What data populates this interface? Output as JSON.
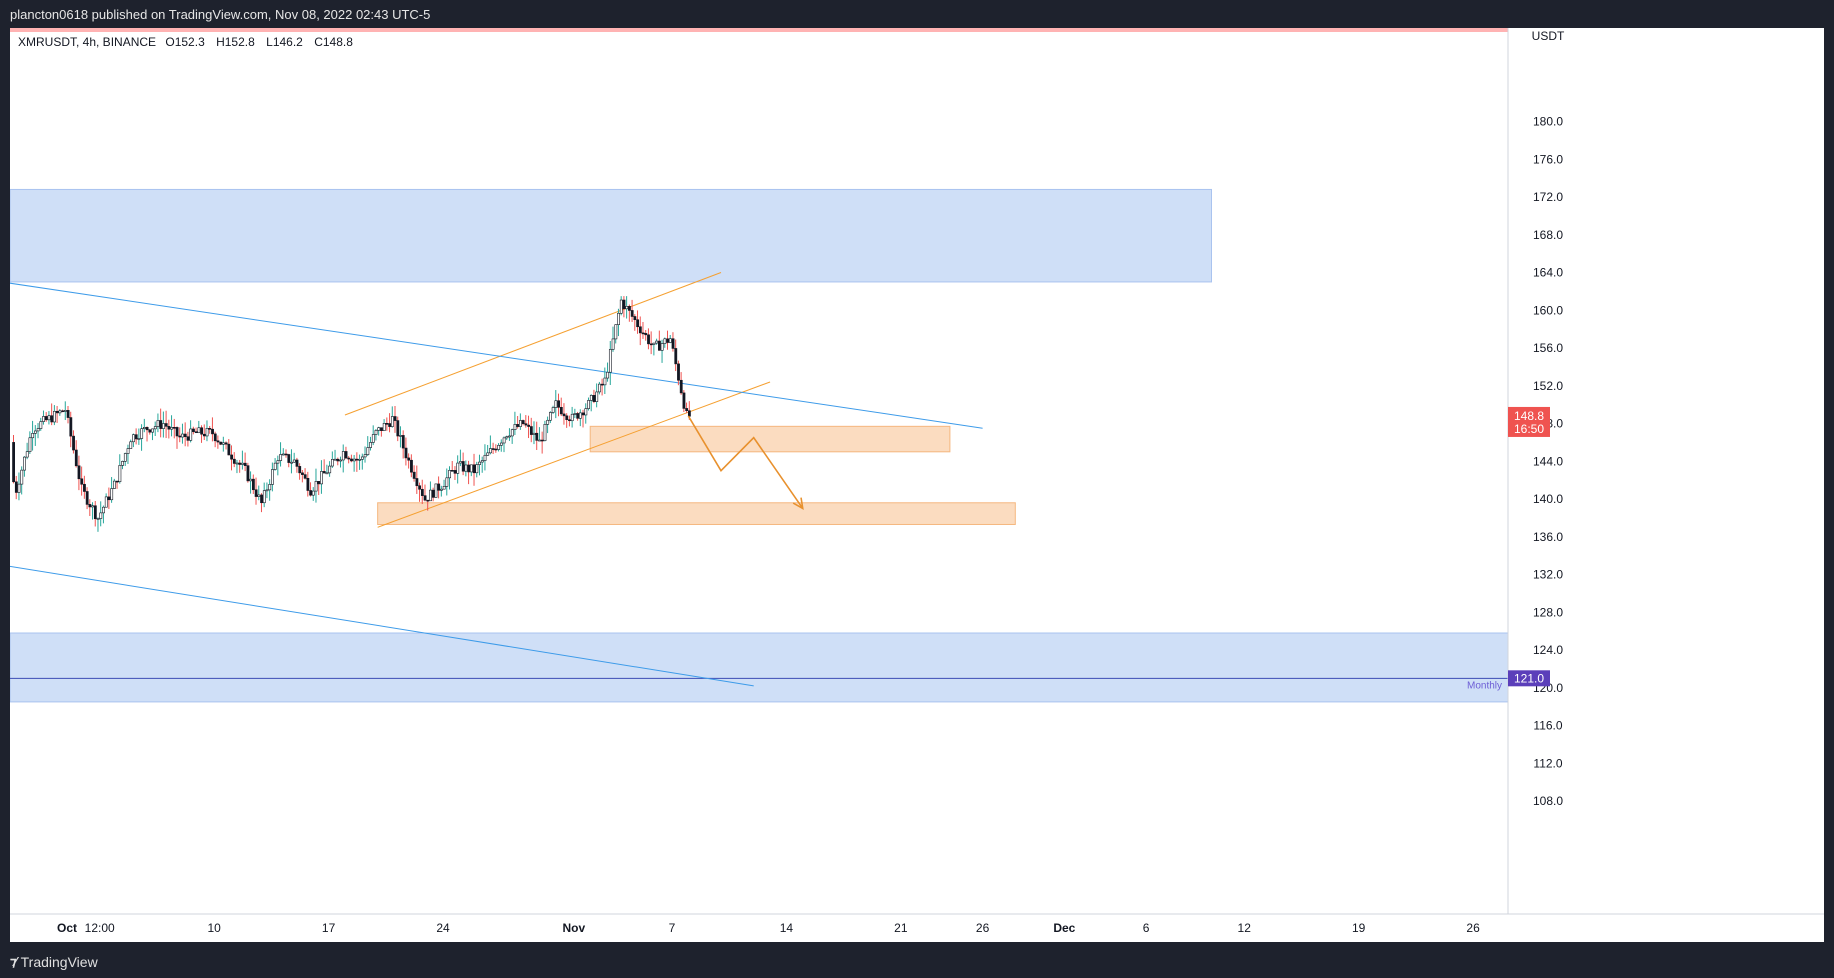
{
  "header": {
    "published_text": "plancton0618 published on TradingView.com, Nov 08, 2022 02:43 UTC-5"
  },
  "symbol": {
    "name": "XMRUSDT, 4h, BINANCE",
    "open": "O152.3",
    "high": "H152.8",
    "low": "L146.2",
    "close": "C148.8"
  },
  "footer": {
    "brand": "TradingView",
    "logo_icon": "tradingview-logo-icon"
  },
  "colors": {
    "up": "#26a69a",
    "down": "#ef5350",
    "candle_body": "#131722",
    "zone_blue": "#cfdff7",
    "zone_blue_border": "#a9c3ef",
    "zone_orange": "#fbdcc0",
    "zone_orange_border": "#f5b77f",
    "channel": "#f5a031",
    "trend_blue": "#3d9be9",
    "path": "#e8912e",
    "price_badge": "#ef5350",
    "level_badge": "#5b3fba",
    "level_line": "#3c4bb5",
    "top_strip": "#ffb3b3"
  },
  "chart_data": {
    "type": "candlestick",
    "symbol": "XMRUSDT",
    "interval": "4h",
    "exchange": "BINANCE",
    "y_axis": {
      "currency": "USDT",
      "ticks": [
        "108.0",
        "112.0",
        "116.0",
        "120.0",
        "124.0",
        "128.0",
        "132.0",
        "136.0",
        "140.0",
        "144.0",
        "148.0",
        "152.0",
        "156.0",
        "160.0",
        "164.0",
        "168.0",
        "172.0",
        "176.0",
        "180.0"
      ],
      "range": [
        104.0,
        183.5
      ]
    },
    "x_axis": {
      "ticks": [
        {
          "label": "Oct",
          "date": "2022-10-01",
          "bold": true
        },
        {
          "label": "12:00",
          "date": "2022-10-03",
          "bold": false
        },
        {
          "label": "10",
          "date": "2022-10-10",
          "bold": false
        },
        {
          "label": "17",
          "date": "2022-10-17",
          "bold": false
        },
        {
          "label": "24",
          "date": "2022-10-24",
          "bold": false
        },
        {
          "label": "Nov",
          "date": "2022-11-01",
          "bold": true
        },
        {
          "label": "7",
          "date": "2022-11-07",
          "bold": false
        },
        {
          "label": "14",
          "date": "2022-11-14",
          "bold": false
        },
        {
          "label": "21",
          "date": "2022-11-21",
          "bold": false
        },
        {
          "label": "26",
          "date": "2022-11-26",
          "bold": false
        },
        {
          "label": "Dec",
          "date": "2022-12-01",
          "bold": true
        },
        {
          "label": "6",
          "date": "2022-12-06",
          "bold": false
        },
        {
          "label": "12",
          "date": "2022-12-12",
          "bold": false
        },
        {
          "label": "19",
          "date": "2022-12-19",
          "bold": false
        },
        {
          "label": "26",
          "date": "2022-12-26",
          "bold": false
        }
      ]
    },
    "price_path": [
      [
        "2022-09-27",
        146.0
      ],
      [
        "2022-09-28",
        141.0
      ],
      [
        "2022-09-29",
        147.5
      ],
      [
        "2022-09-30",
        148.5
      ],
      [
        "2022-10-01",
        149.5
      ],
      [
        "2022-10-02",
        141.0
      ],
      [
        "2022-10-03",
        138.0
      ],
      [
        "2022-10-04",
        141.5
      ],
      [
        "2022-10-05",
        146.5
      ],
      [
        "2022-10-06",
        147.5
      ],
      [
        "2022-10-07",
        148.0
      ],
      [
        "2022-10-08",
        146.5
      ],
      [
        "2022-10-09",
        147.0
      ],
      [
        "2022-10-10",
        147.0
      ],
      [
        "2022-10-11",
        145.0
      ],
      [
        "2022-10-12",
        143.0
      ],
      [
        "2022-10-13",
        139.5
      ],
      [
        "2022-10-14",
        144.5
      ],
      [
        "2022-10-15",
        144.0
      ],
      [
        "2022-10-16",
        141.0
      ],
      [
        "2022-10-17",
        143.0
      ],
      [
        "2022-10-18",
        145.0
      ],
      [
        "2022-10-19",
        144.0
      ],
      [
        "2022-10-20",
        147.0
      ],
      [
        "2022-10-21",
        148.5
      ],
      [
        "2022-10-22",
        144.0
      ],
      [
        "2022-10-23",
        140.0
      ],
      [
        "2022-10-24",
        141.5
      ],
      [
        "2022-10-25",
        143.5
      ],
      [
        "2022-10-26",
        143.0
      ],
      [
        "2022-10-27",
        145.0
      ],
      [
        "2022-10-28",
        147.0
      ],
      [
        "2022-10-29",
        148.0
      ],
      [
        "2022-10-30",
        146.0
      ],
      [
        "2022-10-31",
        150.0
      ],
      [
        "2022-11-01",
        148.5
      ],
      [
        "2022-11-02",
        150.0
      ],
      [
        "2022-11-03",
        152.5
      ],
      [
        "2022-11-04",
        161.0
      ],
      [
        "2022-11-05",
        158.5
      ],
      [
        "2022-11-06",
        156.0
      ],
      [
        "2022-11-07",
        157.0
      ],
      [
        "2022-11-08",
        148.8
      ]
    ],
    "last_price": {
      "value": "148.8",
      "countdown": "16:50"
    },
    "drawings": {
      "zones": [
        {
          "name": "resistance-zone-blue",
          "from": "2022-09-27",
          "to": "2022-12-10",
          "low": 163.0,
          "high": 172.8,
          "color": "blue"
        },
        {
          "name": "monthly-zone-blue",
          "from": "2022-09-27",
          "to": "2023-01-05",
          "low": 118.5,
          "high": 125.8,
          "color": "blue"
        },
        {
          "name": "support-zone-orange-upper",
          "from": "2022-11-02",
          "to": "2022-11-24",
          "low": 145.0,
          "high": 147.7,
          "color": "orange"
        },
        {
          "name": "support-zone-orange-lower",
          "from": "2022-10-20",
          "to": "2022-11-28",
          "low": 137.3,
          "high": 139.6,
          "color": "orange"
        }
      ],
      "lines": [
        {
          "name": "channel-upper-line",
          "x1": "2022-10-18",
          "y1": 148.9,
          "x2": "2022-11-10",
          "y2": 164.0,
          "color": "orange"
        },
        {
          "name": "channel-lower-line",
          "x1": "2022-10-20",
          "y1": 137.0,
          "x2": "2022-11-13",
          "y2": 152.4,
          "color": "orange"
        },
        {
          "name": "trendline-upper",
          "x1": "2022-09-27",
          "y1": 163.0,
          "x2": "2022-11-26",
          "y2": 147.5,
          "color": "blue"
        },
        {
          "name": "trendline-lower",
          "x1": "2022-09-27",
          "y1": 133.0,
          "x2": "2022-11-12",
          "y2": 120.2,
          "color": "blue"
        }
      ],
      "projection_path": [
        [
          "2022-11-08",
          148.8
        ],
        [
          "2022-11-10",
          143.0
        ],
        [
          "2022-11-12",
          146.5
        ],
        [
          "2022-11-15",
          139.0
        ]
      ],
      "horizontal_level": {
        "value": 121.0,
        "label": "121.0",
        "tag": "Monthly"
      }
    }
  }
}
